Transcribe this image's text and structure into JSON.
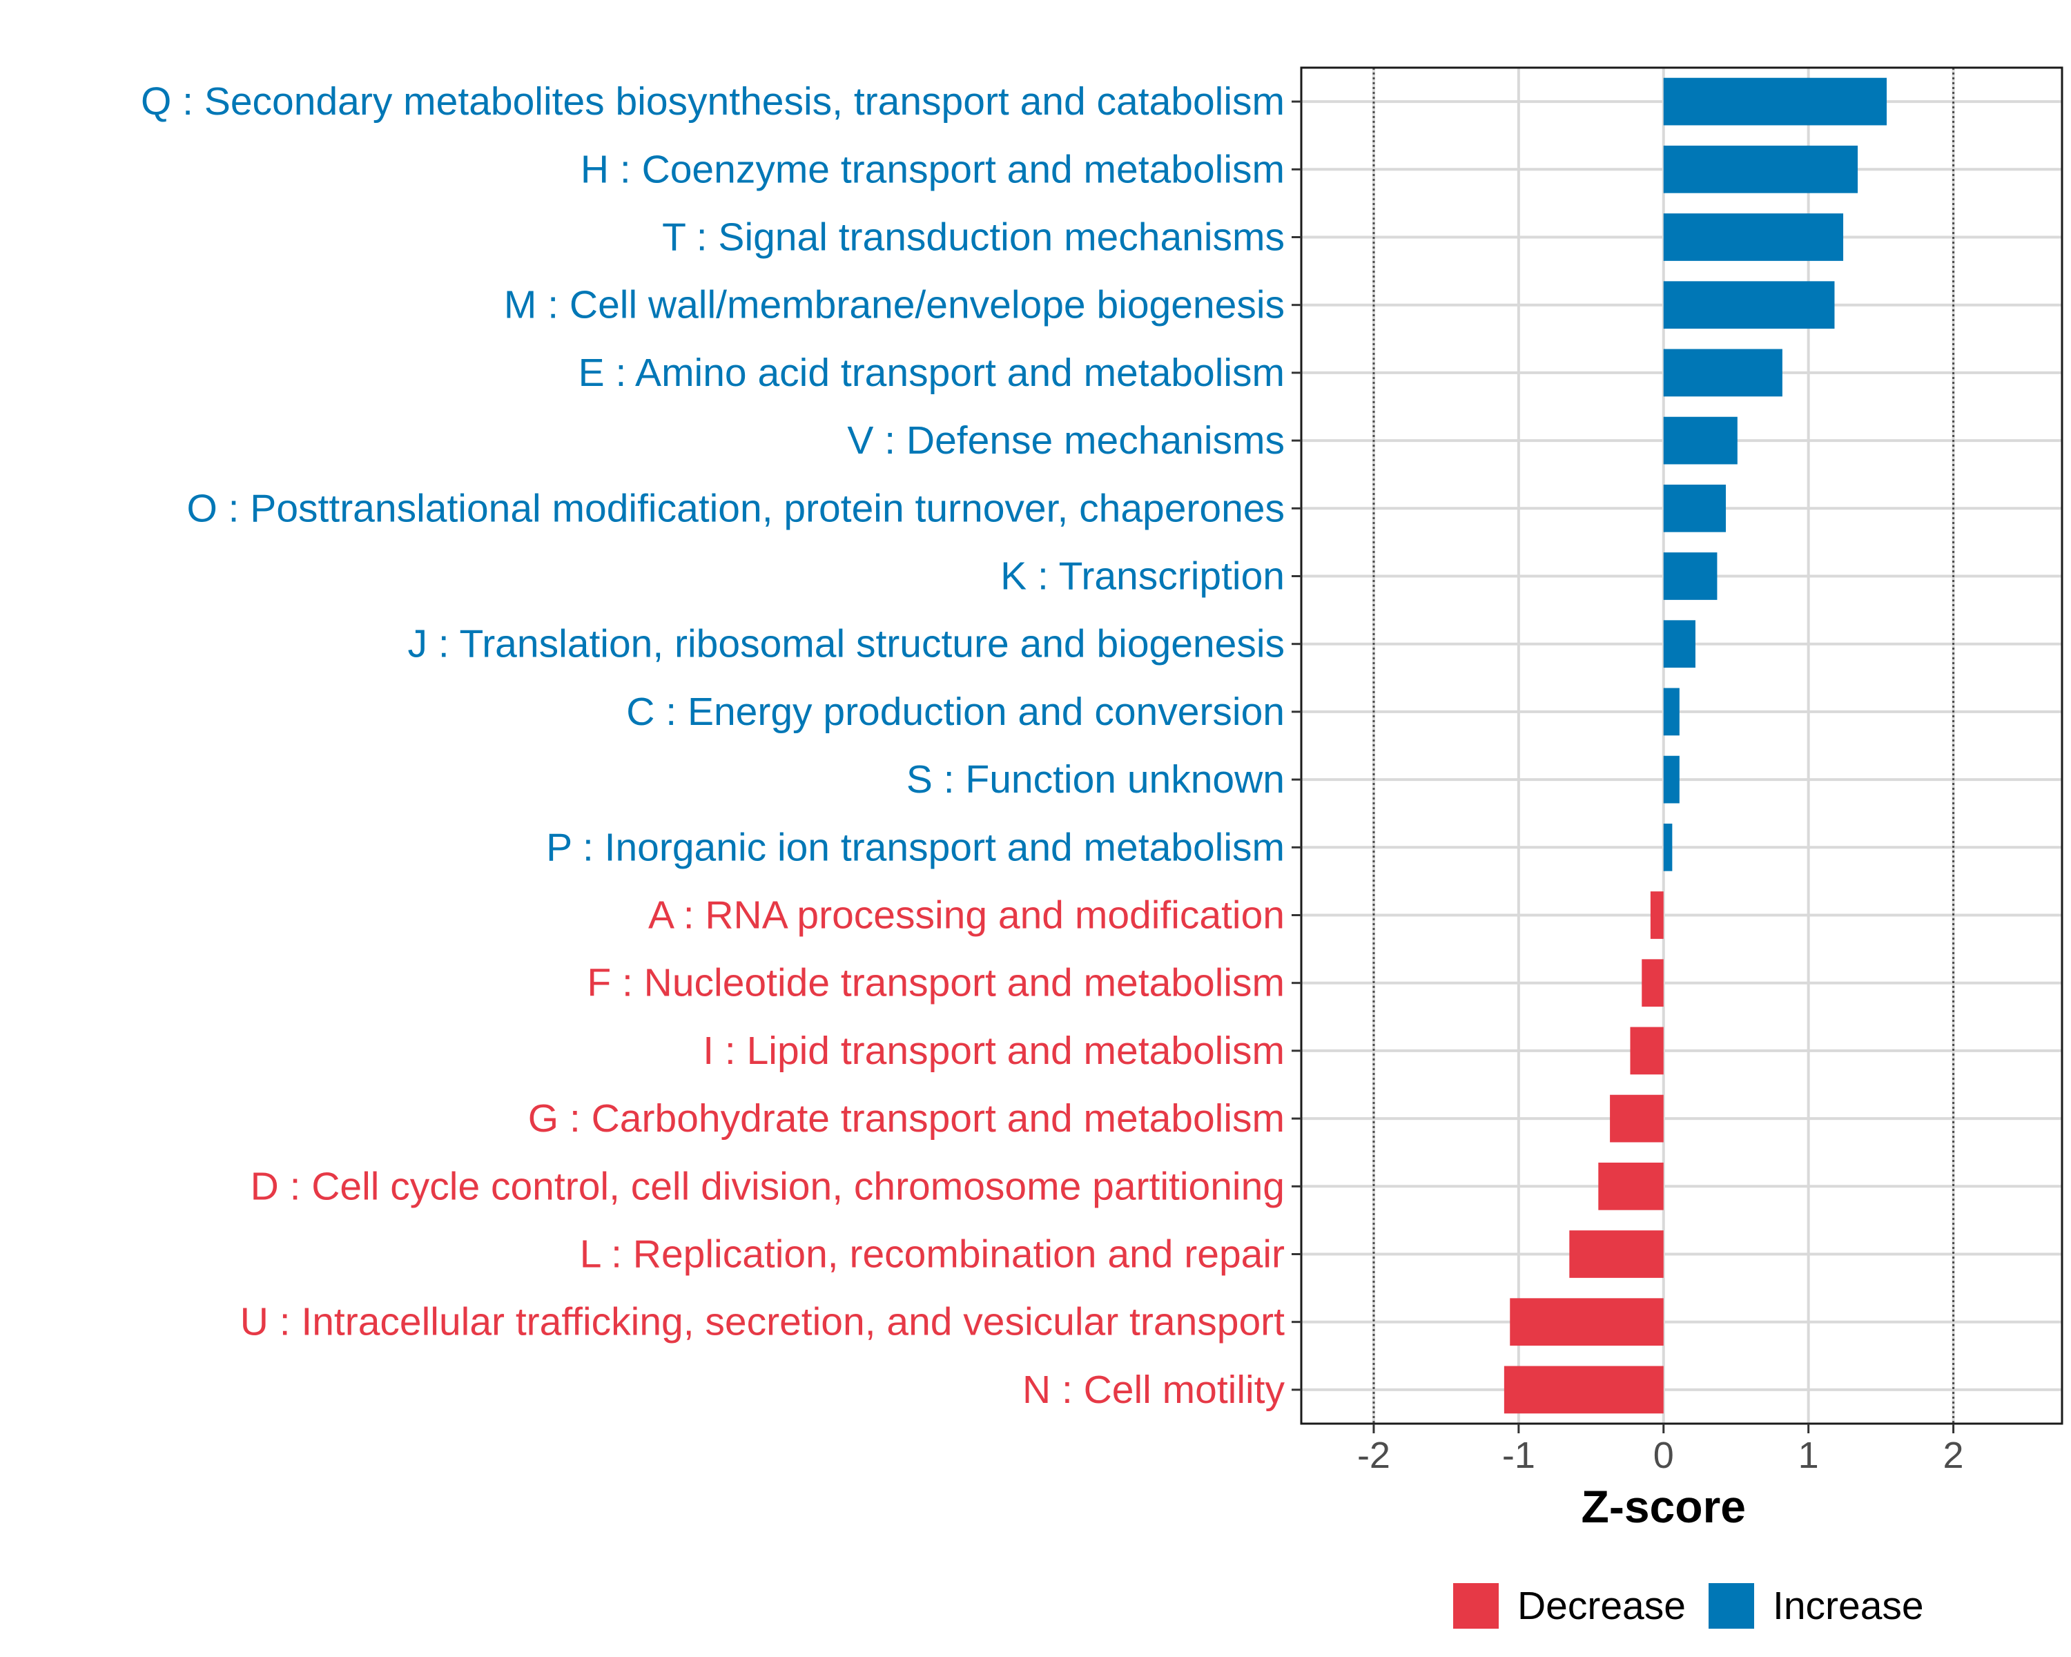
{
  "chart_data": {
    "type": "bar",
    "orientation": "horizontal",
    "xlabel": "Z-score",
    "ylabel": "",
    "xlim": [
      -2.5,
      2.75
    ],
    "xticks": [
      -2,
      -1,
      0,
      1,
      2
    ],
    "xtick_labels": [
      "-2",
      "-1",
      "0",
      "1",
      "2"
    ],
    "reference_lines": [
      -2,
      2
    ],
    "grid": true,
    "categories": [
      "Q : Secondary metabolites biosynthesis, transport and catabolism",
      "H : Coenzyme transport and metabolism",
      "T : Signal transduction mechanisms",
      "M : Cell wall/membrane/envelope biogenesis",
      "E : Amino acid transport and metabolism",
      "V : Defense mechanisms",
      "O : Posttranslational modification, protein turnover, chaperones",
      "K : Transcription",
      "J : Translation, ribosomal structure and biogenesis",
      "C : Energy production and conversion",
      "S : Function unknown",
      "P : Inorganic ion transport and metabolism",
      "A : RNA processing and modification",
      "F : Nucleotide transport and metabolism",
      "I : Lipid transport and metabolism",
      "G : Carbohydrate transport and metabolism",
      "D : Cell cycle control, cell division, chromosome partitioning",
      "L : Replication, recombination and repair",
      "U : Intracellular trafficking, secretion, and vesicular transport",
      "N : Cell motility"
    ],
    "values": [
      1.54,
      1.34,
      1.24,
      1.18,
      0.82,
      0.51,
      0.43,
      0.37,
      0.22,
      0.11,
      0.11,
      0.06,
      -0.09,
      -0.15,
      -0.23,
      -0.37,
      -0.45,
      -0.65,
      -1.06,
      -1.1
    ],
    "groups": [
      "Increase",
      "Increase",
      "Increase",
      "Increase",
      "Increase",
      "Increase",
      "Increase",
      "Increase",
      "Increase",
      "Increase",
      "Increase",
      "Increase",
      "Decrease",
      "Decrease",
      "Decrease",
      "Decrease",
      "Decrease",
      "Decrease",
      "Decrease",
      "Decrease"
    ],
    "legend": {
      "position": "bottom",
      "entries": [
        {
          "label": "Decrease",
          "color": "#E63946"
        },
        {
          "label": "Increase",
          "color": "#0077B6"
        }
      ]
    },
    "colors": {
      "Increase": "#0077B6",
      "Decrease": "#E63946",
      "grid": "#d9d9d9",
      "refline": "#4d4d4d",
      "frame": "#1a1a1a"
    }
  }
}
